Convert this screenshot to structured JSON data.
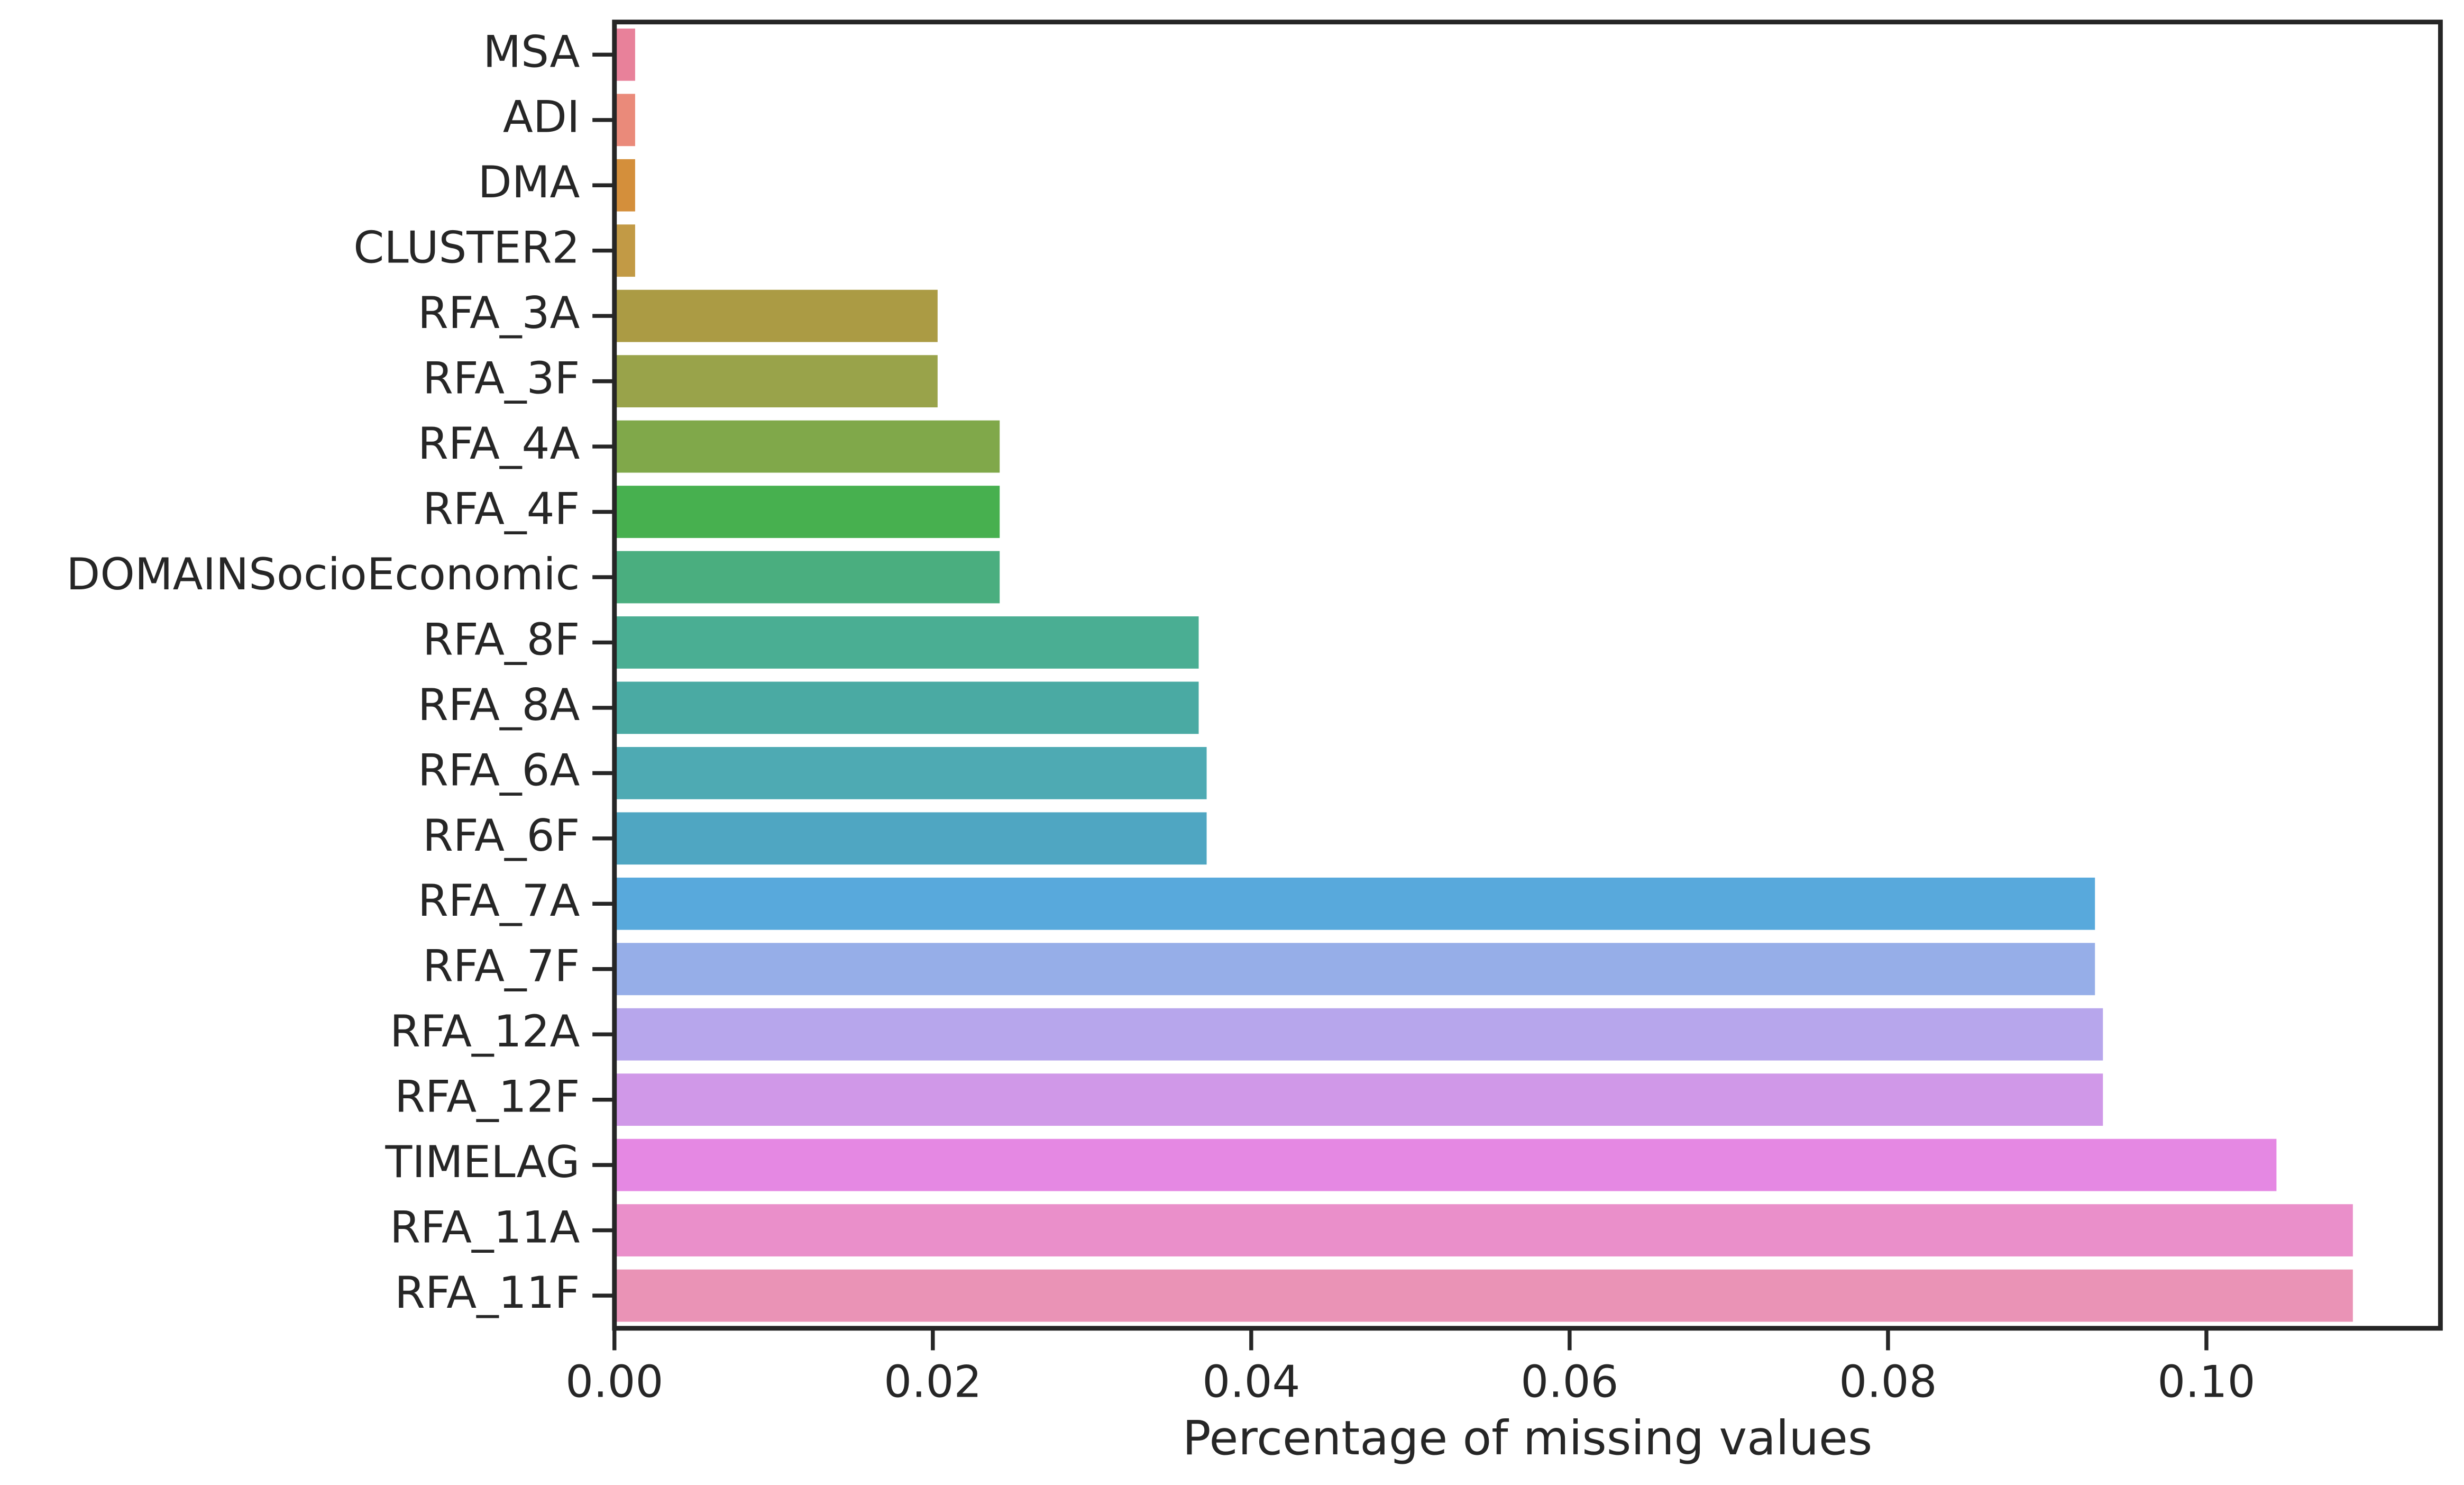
{
  "chart_data": {
    "type": "barh",
    "xlabel": "Percentage of missing values",
    "categories": [
      "MSA",
      "ADI",
      "DMA",
      "CLUSTER2",
      "RFA_3A",
      "RFA_3F",
      "RFA_4A",
      "RFA_4F",
      "DOMAINSocioEconomic",
      "RFA_8F",
      "RFA_8A",
      "RFA_6A",
      "RFA_6F",
      "RFA_7A",
      "RFA_7F",
      "RFA_12A",
      "RFA_12F",
      "TIMELAG",
      "RFA_11A",
      "RFA_11F"
    ],
    "values": [
      0.0013,
      0.0013,
      0.0013,
      0.0013,
      0.0203,
      0.0203,
      0.0242,
      0.0242,
      0.0242,
      0.0367,
      0.0367,
      0.0372,
      0.0372,
      0.093,
      0.093,
      0.0935,
      0.0935,
      0.1044,
      0.1092,
      0.1092
    ],
    "colors": [
      "#e8819a",
      "#ea8a7a",
      "#d48f3b",
      "#c29a45",
      "#ab9b44",
      "#99a34a",
      "#80a84a",
      "#47b04f",
      "#4aae7f",
      "#4aae93",
      "#4aaaa3",
      "#4eaab3",
      "#4fa6c2",
      "#58a9dc",
      "#96aee8",
      "#b7a6ec",
      "#d098e8",
      "#e588e3",
      "#ea8fca",
      "#ea93b6"
    ],
    "xlim": [
      0,
      0.1147
    ],
    "xticks": [
      {
        "value": 0,
        "label": "0.00"
      },
      0.02,
      0.04,
      0.06,
      0.08,
      {
        "value": 0.1,
        "label": "0.10"
      }
    ]
  }
}
